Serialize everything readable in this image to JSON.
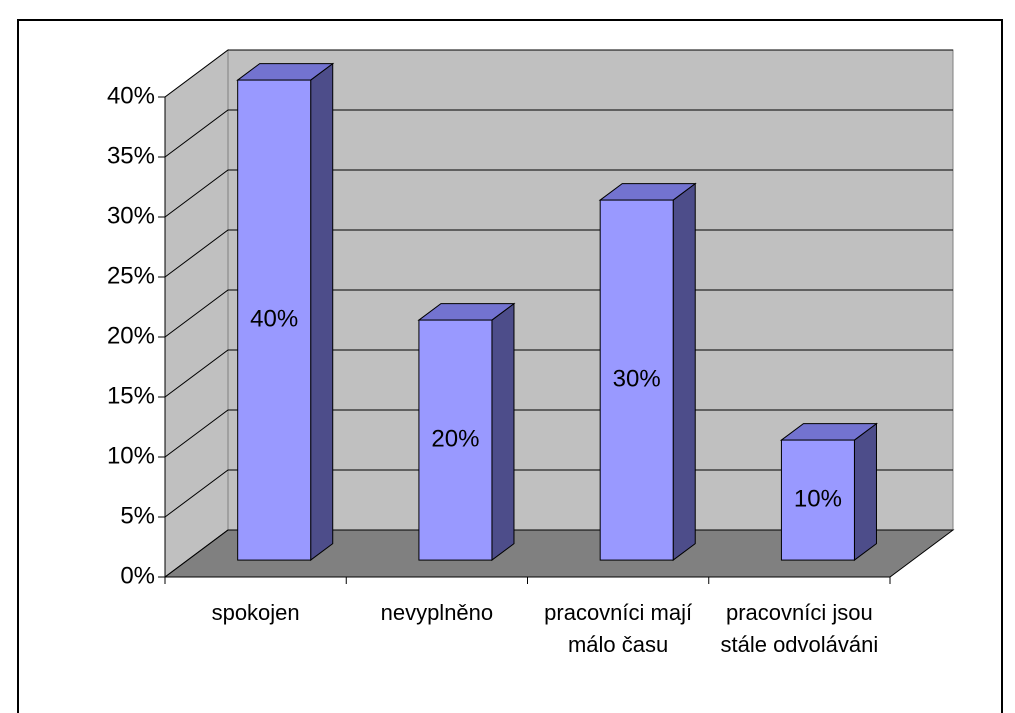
{
  "chart_data": {
    "type": "bar3d",
    "categories": [
      "spokojen",
      "nevyplněno",
      "pracovníci mají málo času",
      "pracovníci jsou stále odvoláváni"
    ],
    "values": [
      40,
      20,
      30,
      10
    ],
    "value_labels": [
      "40%",
      "20%",
      "30%",
      "10%"
    ],
    "color": "#9999ff",
    "ylim": [
      0,
      40
    ],
    "yticks": [
      {
        "value": 0,
        "label": "0%"
      },
      {
        "value": 5,
        "label": "5%"
      },
      {
        "value": 10,
        "label": "10%"
      },
      {
        "value": 15,
        "label": "15%"
      },
      {
        "value": 20,
        "label": "20%"
      },
      {
        "value": 25,
        "label": "25%"
      },
      {
        "value": 30,
        "label": "30%"
      },
      {
        "value": 35,
        "label": "35%"
      },
      {
        "value": 40,
        "label": "40%"
      }
    ],
    "grid": true
  }
}
